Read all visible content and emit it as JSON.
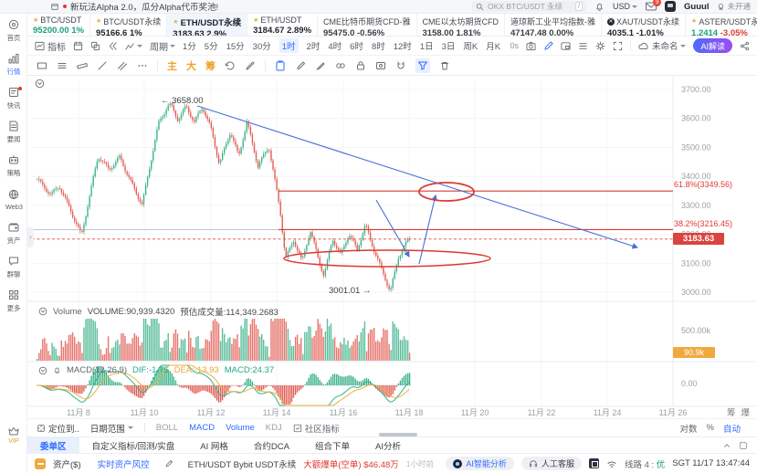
{
  "announcement": {
    "text": "新玩法Alpha 2.0，瓜分Alpha代币奖池!"
  },
  "topbar": {
    "search_placeholder": "OKX BTC/USDT 永续",
    "search_shortcut": "/",
    "currency": "USD",
    "mail_badge": "9",
    "username": "Guuul",
    "status_badge": "未开通"
  },
  "tickers": [
    {
      "icon": "star",
      "name": "BTC/USDT",
      "price": "95200.00",
      "change": "1%",
      "price_color": "#1ba27a",
      "change_color": "#1ba27a",
      "selected": false
    },
    {
      "icon": "star",
      "name": "BTC/USDT永续",
      "price": "95166.6",
      "change": "1%",
      "price_color": "#1f2329",
      "change_color": "#1f2329",
      "selected": false
    },
    {
      "icon": "star",
      "name": "ETH/USDT永续",
      "price": "3183.63",
      "change": "2.9%",
      "price_color": "#1f2329",
      "change_color": "#1f2329",
      "selected": true
    },
    {
      "icon": "star",
      "name": "ETH/USDT",
      "price": "3184.67",
      "change": "2.89%",
      "price_color": "#1f2329",
      "change_color": "#1f2329",
      "selected": false
    },
    {
      "icon": "none",
      "name": "CME比特币期货CFD-雅",
      "price": "95475.0",
      "change": "-0.56%",
      "price_color": "#3c4043",
      "change_color": "#3c4043",
      "selected": false
    },
    {
      "icon": "none",
      "name": "CME以太坊期货CFD",
      "price": "3158.00",
      "change": "1.81%",
      "price_color": "#3c4043",
      "change_color": "#3c4043",
      "selected": false
    },
    {
      "icon": "none",
      "name": "道琼斯工业平均指数-雅",
      "price": "47147.48",
      "change": "0.00%",
      "price_color": "#3c4043",
      "change_color": "#3c4043",
      "selected": false
    },
    {
      "icon": "xaut",
      "name": "XAUT/USDT永续",
      "price": "4035.1",
      "change": "-1.01%",
      "price_color": "#1f2329",
      "change_color": "#1f2329",
      "selected": false
    },
    {
      "icon": "star",
      "name": "ASTER/USDT永续",
      "price": "1.2414",
      "change": "-3.05%",
      "price_color": "#1ba27a",
      "change_color": "#e0392f",
      "selected": false
    }
  ],
  "sidebar": {
    "items": [
      {
        "key": "home",
        "label": "首页",
        "active": false,
        "dot": false
      },
      {
        "key": "market",
        "label": "行情",
        "active": true,
        "dot": false
      },
      {
        "key": "flash",
        "label": "快讯",
        "active": false,
        "dot": true
      },
      {
        "key": "news",
        "label": "要闻",
        "active": false,
        "dot": false
      },
      {
        "key": "strategy",
        "label": "策略",
        "active": false,
        "dot": false
      },
      {
        "key": "web3",
        "label": "Web3",
        "active": false,
        "dot": false
      },
      {
        "key": "assets",
        "label": "资产",
        "active": false,
        "dot": false
      },
      {
        "key": "chat",
        "label": "群聊",
        "active": false,
        "dot": false
      },
      {
        "key": "more",
        "label": "更多",
        "active": false,
        "dot": false
      }
    ],
    "vip_label": "VIP"
  },
  "toolbar": {
    "indicator_label": "指标",
    "period_label": "周期",
    "periods": [
      "1分",
      "5分",
      "15分",
      "30分",
      "1时",
      "2时",
      "4时",
      "6时",
      "8时",
      "12时",
      "1日",
      "3日",
      "周K",
      "月K"
    ],
    "active_period_index": 4,
    "seconds": "0s",
    "layout_name": "未命名",
    "ai_button": "AI解读"
  },
  "draw_toolbar": {
    "highlight_tools": [
      "主",
      "大",
      "筹"
    ]
  },
  "chart_data": {
    "type": "candlestick",
    "symbol": "ETH/USDT永续",
    "interval": "1时",
    "y_ticks": [
      "3700.00",
      "3600.00",
      "3500.00",
      "3400.00",
      "3300.00",
      "3200.00",
      "3100.00",
      "3000.00"
    ],
    "x_dates": [
      "11月 8",
      "11月 10",
      "11月 12",
      "11月 14",
      "11月 16",
      "11月 18",
      "11月 20",
      "11月 22",
      "11月 24",
      "11月 26"
    ],
    "high_label": "3658.00",
    "low_label": "3001.01",
    "last_price": "3183.63",
    "fib": [
      {
        "label": "61.8%(3349.56)",
        "price": 3349.56
      },
      {
        "label": "38.2%(3216.45)",
        "price": 3216.45
      }
    ],
    "waypoints": [
      [
        0.0,
        3390
      ],
      [
        0.037,
        3330
      ],
      [
        0.059,
        3365
      ],
      [
        0.089,
        3290
      ],
      [
        0.119,
        3200
      ],
      [
        0.163,
        3465
      ],
      [
        0.193,
        3420
      ],
      [
        0.222,
        3470
      ],
      [
        0.252,
        3385
      ],
      [
        0.282,
        3300
      ],
      [
        0.326,
        3580
      ],
      [
        0.356,
        3658
      ],
      [
        0.378,
        3600
      ],
      [
        0.4,
        3645
      ],
      [
        0.422,
        3585
      ],
      [
        0.444,
        3635
      ],
      [
        0.467,
        3560
      ],
      [
        0.489,
        3445
      ],
      [
        0.519,
        3560
      ],
      [
        0.541,
        3470
      ],
      [
        0.563,
        3585
      ],
      [
        0.593,
        3430
      ],
      [
        0.622,
        3505
      ],
      [
        0.652,
        3290
      ],
      [
        0.667,
        3120
      ],
      [
        0.689,
        3180
      ],
      [
        0.711,
        3100
      ],
      [
        0.733,
        3210
      ],
      [
        0.756,
        3110
      ],
      [
        0.77,
        3060
      ],
      [
        0.793,
        3190
      ],
      [
        0.815,
        3130
      ],
      [
        0.837,
        3200
      ],
      [
        0.859,
        3140
      ],
      [
        0.881,
        3230
      ],
      [
        0.904,
        3150
      ],
      [
        0.926,
        3080
      ],
      [
        0.948,
        3006
      ],
      [
        0.97,
        3120
      ],
      [
        1.0,
        3185
      ]
    ],
    "volume": {
      "title": "Volume",
      "value_label": "VOLUME:90,939.4320",
      "est_label": "预估成交量:114,349.2683",
      "axis_max": "500.00k",
      "current": "90.9k"
    },
    "macd": {
      "label": "MACD(12,26,9)",
      "dif": "DIF:-1.75",
      "dea": "DEA:-13.93",
      "macd": "MACD:24.37",
      "zero": "0.00"
    },
    "colors": {
      "up": "#3eb389",
      "down": "#e25d55",
      "annotation": "#d93a35",
      "trend": "#4a6fd8",
      "dif_line": "#2fb58c",
      "dea_line": "#ecb23f"
    }
  },
  "indicator_row": {
    "locate": "定位到..",
    "date_range": "日期范围",
    "boll": "BOLL",
    "macd": "MACD",
    "volume": "Volume",
    "kdj": "KDJ",
    "community": "社区指标",
    "log": "对数",
    "percent": "%",
    "auto": "自动",
    "chips": "筹",
    "burst": "爆"
  },
  "bottom_tabs": {
    "items": [
      "委单区",
      "自定义指标/回测/实盘",
      "AI 网格",
      "合约DCA",
      "组合下单",
      "AI分析"
    ],
    "active_index": 0
  },
  "status_bar": {
    "assets": "资产($)",
    "risk": "实时资产风控",
    "symbol": "ETH/USDT Bybit USDT永续",
    "alert": "大额爆单(空单) $46.48万",
    "time_ago": "1小时前",
    "ai": "AI智能分析",
    "support": "人工客服",
    "line_label": "线路 4 :",
    "line_status": "优",
    "clock": "SGT 11/17 13:47:44"
  }
}
